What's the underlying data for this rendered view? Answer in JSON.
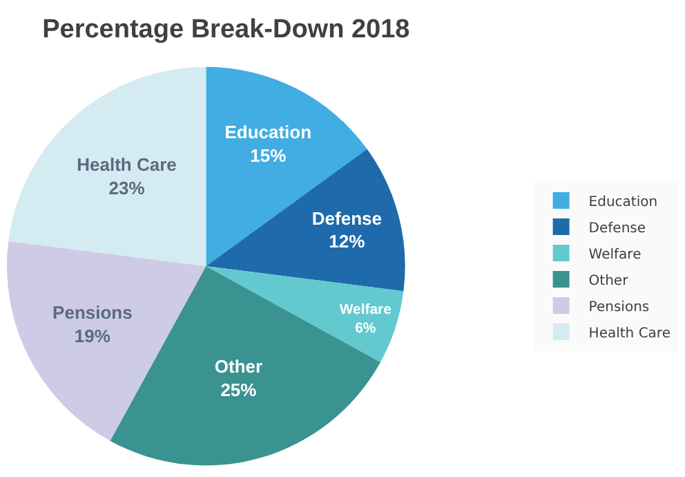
{
  "chart_data": {
    "type": "pie",
    "title": "Percentage Break-Down 2018",
    "categories": [
      "Education",
      "Defense",
      "Welfare",
      "Other",
      "Pensions",
      "Health Care"
    ],
    "values": [
      15,
      12,
      6,
      25,
      19,
      23
    ],
    "value_labels": [
      "15%",
      "12%",
      "6%",
      "25%",
      "19%",
      "23%"
    ],
    "colors": [
      "#41ade3",
      "#1f6aab",
      "#62c9cf",
      "#3a9390",
      "#cdcbe5",
      "#d3ebf1"
    ],
    "legend": "right"
  }
}
